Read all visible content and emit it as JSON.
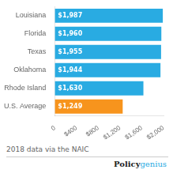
{
  "chart_data": {
    "type": "bar",
    "orientation": "horizontal",
    "categories": [
      "Louisiana",
      "Florida",
      "Texas",
      "Oklahoma",
      "Rhode Island",
      "U.S. Average"
    ],
    "values": [
      1987,
      1960,
      1955,
      1944,
      1630,
      1249
    ],
    "value_labels": [
      "$1,987",
      "$1,960",
      "$1,955",
      "$1,944",
      "$1,630",
      "$1,249"
    ],
    "data_labels": true,
    "colors": [
      "#29abe2",
      "#29abe2",
      "#29abe2",
      "#29abe2",
      "#29abe2",
      "#f7941d"
    ],
    "xlim": [
      0,
      2000
    ],
    "xticks": [
      0,
      {
        "value": 400,
        "label": "$400"
      },
      {
        "value": 800,
        "label": "$800"
      },
      {
        "value": 1200,
        "label": "$1,200"
      },
      {
        "value": 1600,
        "label": "$1,600"
      },
      {
        "value": 2000,
        "label": "$2,000"
      }
    ],
    "grid": false,
    "annotations": [
      "2018 data via the NAIC",
      "Policy",
      "genius"
    ]
  }
}
